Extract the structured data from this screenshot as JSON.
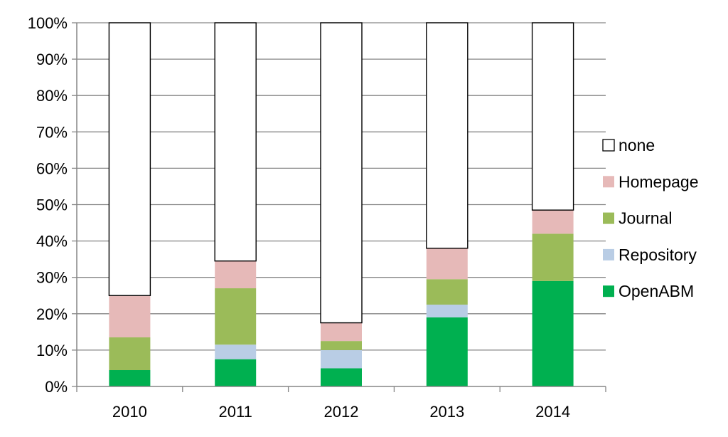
{
  "chart_data": {
    "type": "bar",
    "stacked": true,
    "percent_axis": true,
    "categories": [
      "2010",
      "2011",
      "2012",
      "2013",
      "2014"
    ],
    "series": [
      {
        "name": "OpenABM",
        "values": [
          4.5,
          7.5,
          5.0,
          19.0,
          29.0
        ],
        "color": "#00b050"
      },
      {
        "name": "Repository",
        "values": [
          0.0,
          4.0,
          5.0,
          3.5,
          0.0
        ],
        "color": "#b9cde5"
      },
      {
        "name": "Journal",
        "values": [
          9.0,
          15.5,
          2.5,
          7.0,
          13.0
        ],
        "color": "#9bbb59"
      },
      {
        "name": "Homepage",
        "values": [
          11.5,
          7.5,
          5.0,
          8.5,
          6.5
        ],
        "color": "#e6b9b8"
      },
      {
        "name": "none",
        "values": [
          75.0,
          65.5,
          82.5,
          62.0,
          51.5
        ],
        "color": "#ffffff"
      }
    ],
    "ylim": [
      0,
      100
    ],
    "yticks": [
      "0%",
      "10%",
      "20%",
      "30%",
      "40%",
      "50%",
      "60%",
      "70%",
      "80%",
      "90%",
      "100%"
    ],
    "grid": true,
    "legend": {
      "placement": "right",
      "order": [
        "none",
        "Homepage",
        "Journal",
        "Repository",
        "OpenABM"
      ]
    },
    "title": "",
    "xlabel": "",
    "ylabel": ""
  }
}
